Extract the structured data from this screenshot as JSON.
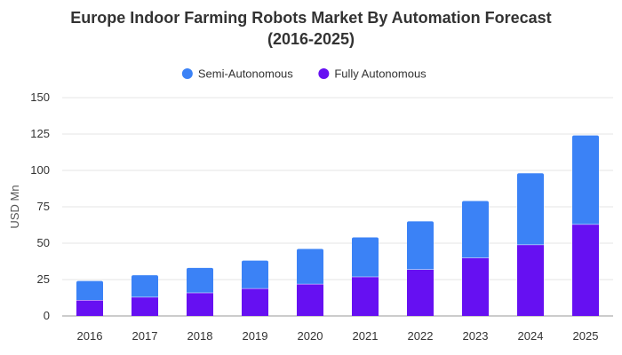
{
  "chart_data": {
    "type": "bar",
    "stacked": true,
    "title": "Europe Indoor Farming Robots Market By Automation Forecast\n(2016-2025)",
    "xlabel": "",
    "ylabel": "USD Mn",
    "ylim": [
      0,
      150
    ],
    "yticks": [
      0,
      25,
      50,
      75,
      100,
      125,
      150
    ],
    "grid": true,
    "legend_position": "top-center",
    "categories": [
      "2016",
      "2017",
      "2018",
      "2019",
      "2020",
      "2021",
      "2022",
      "2023",
      "2024",
      "2025"
    ],
    "series": [
      {
        "name": "Fully Autonomous",
        "color": "#6610f2",
        "values": [
          11,
          13,
          16,
          19,
          22,
          27,
          32,
          40,
          49,
          63
        ]
      },
      {
        "name": "Semi-Autonomous",
        "color": "#3b82f6",
        "values": [
          13,
          15,
          17,
          19,
          24,
          27,
          33,
          39,
          49,
          61
        ]
      }
    ],
    "legend_order": [
      "Semi-Autonomous",
      "Fully Autonomous"
    ]
  }
}
